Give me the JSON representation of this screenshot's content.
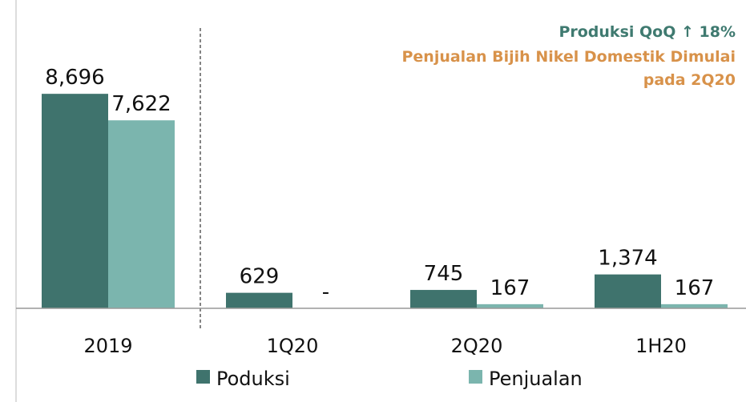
{
  "chart_data": {
    "type": "bar",
    "annotations": [
      "Produksi QoQ ↑ 18%",
      "Penjualan Bijih Nikel Domestik Dimulai",
      "pada 2Q20"
    ],
    "categories": [
      "2019",
      "1Q20",
      "2Q20",
      "1H20"
    ],
    "series": [
      {
        "name": "Poduksi",
        "color": "#3f736d",
        "values": [
          8696,
          629,
          745,
          1374
        ],
        "value_labels": [
          "8,696",
          "629",
          "745",
          "1,374"
        ]
      },
      {
        "name": "Penjualan",
        "color": "#7bb5ae",
        "values": [
          7622,
          null,
          167,
          167
        ],
        "value_labels": [
          "7,622",
          "-",
          "167",
          "167"
        ]
      }
    ],
    "ylim": [
      0,
      10000
    ],
    "grid": false,
    "legend": "bottom"
  }
}
